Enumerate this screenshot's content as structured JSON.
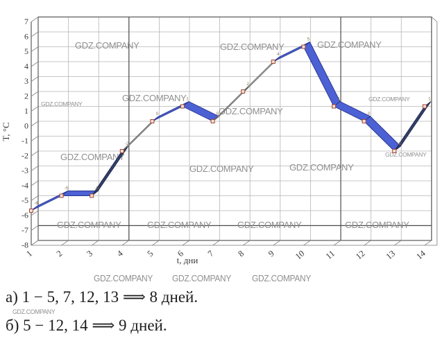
{
  "watermark": {
    "text": "GDZ.COMPANY",
    "color": "#8f8f8f"
  },
  "chart_data": {
    "type": "line",
    "title": "",
    "xlabel": "t, дни",
    "ylabel": "T, °C",
    "x": [
      1,
      2,
      3,
      4,
      5,
      6,
      7,
      8,
      9,
      10,
      11,
      12,
      13,
      14
    ],
    "values": [
      -6,
      -5,
      -5,
      -2,
      0,
      1,
      0,
      2,
      4,
      5,
      1,
      0,
      -2,
      1
    ],
    "point_labels": [
      "-6",
      "-5",
      "-5",
      "-2",
      "0",
      "1",
      "0",
      "2",
      "4",
      "5",
      "1",
      "0",
      "-2",
      "1"
    ],
    "segment_styles": [
      "blue",
      "blue",
      "navy",
      "thin",
      "blue",
      "blue",
      "thin",
      "thin",
      "blue",
      "blue",
      "blue",
      "blue",
      "navy"
    ],
    "xticks": [
      "1",
      "2",
      "3",
      "4",
      "5",
      "6",
      "7",
      "8",
      "9",
      "10",
      "11",
      "12",
      "13",
      "14"
    ],
    "yticks": [
      "7",
      "6",
      "5",
      "4",
      "3",
      "2",
      "1",
      "0",
      "-1",
      "-2",
      "-3",
      "-4",
      "-5",
      "-6",
      "-7",
      "-8"
    ],
    "ylim": [
      -8,
      7
    ],
    "grid": true,
    "legend": "none",
    "dark_vertical_days": [
      4,
      11
    ],
    "dark_horizontal_t": -7,
    "colors": {
      "ribbon_blue": "#4c61d4",
      "ribbon_blue_edge": "#26348c",
      "ribbon_navy": "#333f6d",
      "ribbon_navy_edge": "#1e2747",
      "ribbon_thin_fill": "#f7f7f7",
      "ribbon_thin_edge": "#5c5c5c",
      "marker_fill": "#f6ded2",
      "marker_stroke": "#a04838",
      "grid": "#b5b5b5",
      "frame": "#4a4a4a",
      "tick_text": "#3a3a3a",
      "point_label": "#8a7350"
    }
  },
  "answers": {
    "line_a": "а) 1 − 5, 7, 12, 13 ⟹ 8 дней.",
    "line_b": "б) 5 − 12, 14 ⟹ 9 дней."
  }
}
